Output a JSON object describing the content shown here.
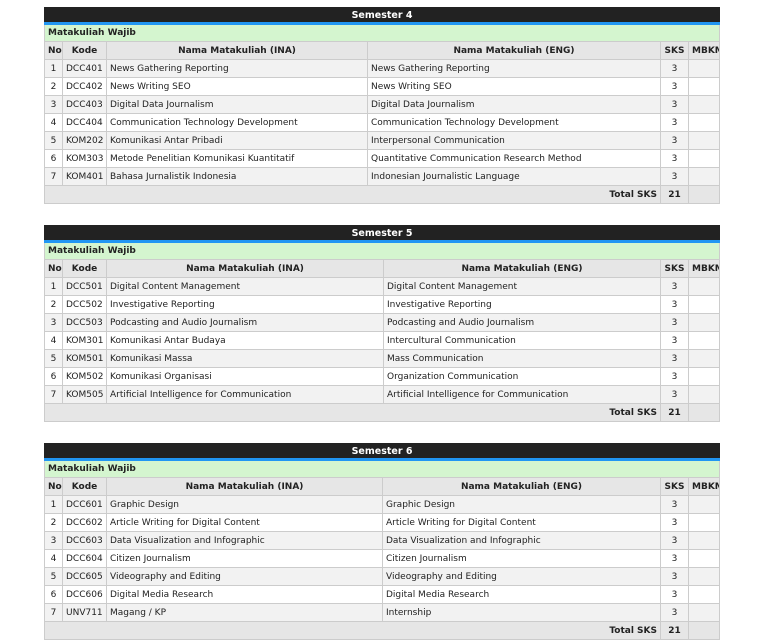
{
  "headers": {
    "no": "No",
    "kode": "Kode",
    "ina": "Nama Matakuliah (INA)",
    "eng": "Nama Matakuliah (ENG)",
    "sks": "SKS",
    "mbkm": "MBKM"
  },
  "category": "Matakuliah Wajib",
  "total_label": "Total SKS",
  "colors": {
    "title_bg": "#222222",
    "accent": "#2196f3",
    "category_bg": "#d4f5cf"
  },
  "semesters": [
    {
      "title": "Semester 4",
      "total": "21",
      "rows": [
        [
          "1",
          "DCC401",
          "News Gathering Reporting",
          "News Gathering Reporting",
          "3"
        ],
        [
          "2",
          "DCC402",
          "News Writing SEO",
          "News Writing SEO",
          "3"
        ],
        [
          "3",
          "DCC403",
          "Digital Data Journalism",
          "Digital Data Journalism",
          "3"
        ],
        [
          "4",
          "DCC404",
          "Communication Technology Development",
          "Communication Technology Development",
          "3"
        ],
        [
          "5",
          "KOM202",
          "Komunikasi Antar Pribadi",
          "Interpersonal Communication",
          "3"
        ],
        [
          "6",
          "KOM303",
          "Metode Penelitian Komunikasi Kuantitatif",
          "Quantitative Communication Research Method",
          "3"
        ],
        [
          "7",
          "KOM401",
          "Bahasa Jurnalistik Indonesia",
          "Indonesian Journalistic Language",
          "3"
        ]
      ]
    },
    {
      "title": "Semester 5",
      "total": "21",
      "rows": [
        [
          "1",
          "DCC501",
          "Digital Content Management",
          "Digital Content Management",
          "3"
        ],
        [
          "2",
          "DCC502",
          "Investigative Reporting",
          "Investigative Reporting",
          "3"
        ],
        [
          "3",
          "DCC503",
          "Podcasting and Audio Journalism",
          "Podcasting and Audio Journalism",
          "3"
        ],
        [
          "4",
          "KOM301",
          "Komunikasi Antar Budaya",
          "Intercultural Communication",
          "3"
        ],
        [
          "5",
          "KOM501",
          "Komunikasi Massa",
          "Mass Communication",
          "3"
        ],
        [
          "6",
          "KOM502",
          "Komunikasi Organisasi",
          "Organization Communication",
          "3"
        ],
        [
          "7",
          "KOM505",
          "Artificial Intelligence for Communication",
          "Artificial Intelligence for Communication",
          "3"
        ]
      ]
    },
    {
      "title": "Semester 6",
      "total": "21",
      "rows": [
        [
          "1",
          "DCC601",
          "Graphic Design",
          "Graphic Design",
          "3"
        ],
        [
          "2",
          "DCC602",
          "Article Writing for Digital Content",
          "Article Writing for Digital Content",
          "3"
        ],
        [
          "3",
          "DCC603",
          "Data Visualization and Infographic",
          "Data Visualization and Infographic",
          "3"
        ],
        [
          "4",
          "DCC604",
          "Citizen Journalism",
          "Citizen Journalism",
          "3"
        ],
        [
          "5",
          "DCC605",
          "Videography and Editing",
          "Videography and Editing",
          "3"
        ],
        [
          "6",
          "DCC606",
          "Digital Media Research",
          "Digital Media Research",
          "3"
        ],
        [
          "7",
          "UNV711",
          "Magang / KP",
          "Internship",
          "3"
        ]
      ]
    }
  ]
}
